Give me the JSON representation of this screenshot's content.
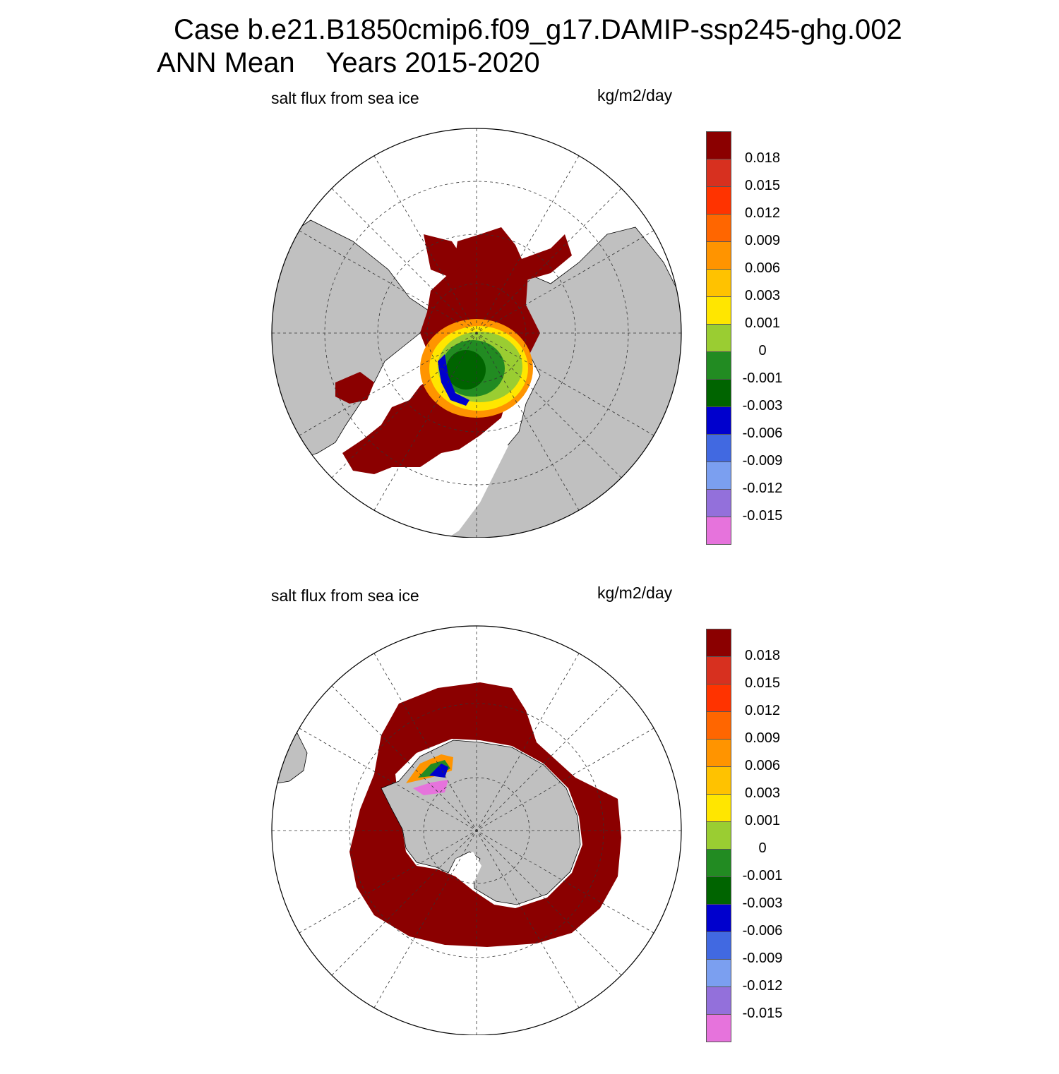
{
  "title": {
    "line1": "Case b.e21.B1850cmip6.f09_g17.DAMIP-ssp245-ghg.002",
    "line2": "ANN Mean    Years 2015-2020"
  },
  "panels": [
    {
      "id": "north",
      "variable_label": "salt flux from sea ice",
      "unit_label": "kg/m2/day",
      "hemisphere": "north"
    },
    {
      "id": "south",
      "variable_label": "salt flux from sea ice",
      "unit_label": "kg/m2/day",
      "hemisphere": "south"
    }
  ],
  "colorbar": {
    "colors": [
      "#8b0000",
      "#d7301f",
      "#ff3300",
      "#ff6600",
      "#ff9400",
      "#ffc200",
      "#ffe600",
      "#9acd32",
      "#228b22",
      "#006400",
      "#0000cd",
      "#4169e1",
      "#7b9ff0",
      "#9370db",
      "#e673dc"
    ],
    "labels": [
      "0.018",
      "0.015",
      "0.012",
      "0.009",
      "0.006",
      "0.003",
      "0.001",
      "0",
      "-0.001",
      "-0.003",
      "-0.006",
      "-0.009",
      "-0.012",
      "-0.015"
    ]
  },
  "map_colors": {
    "land": "#c0c0c0",
    "ocean": "#ffffff",
    "ice_dominant": "#8b0000"
  }
}
